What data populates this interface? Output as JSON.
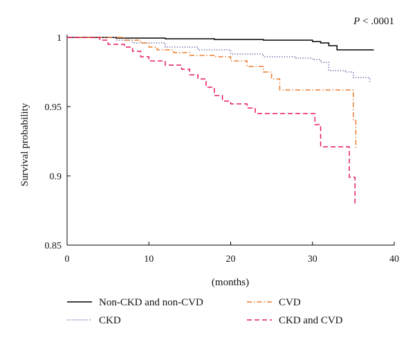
{
  "chart_data": {
    "type": "line",
    "title": "",
    "annotation": {
      "italic": "P",
      "rest": " < .0001"
    },
    "xlabel": "(months)",
    "ylabel": "Survival probability",
    "xlim": [
      0,
      40
    ],
    "ylim": [
      0.85,
      1.0
    ],
    "xticks": [
      0,
      10,
      20,
      30,
      40
    ],
    "yticks": [
      0.85,
      0.9,
      0.95,
      1.0
    ],
    "xtick_labels": [
      "0",
      "10",
      "20",
      "30",
      "40"
    ],
    "ytick_labels": [
      "0.85",
      "0.9",
      "0.95",
      "1"
    ],
    "grid": false,
    "legend_position": "bottom",
    "series": [
      {
        "name": "Non-CKD and non-CVD",
        "color": "#000000",
        "dash": "solid",
        "points": [
          [
            0,
            1.0
          ],
          [
            6,
            0.9995
          ],
          [
            12,
            0.999
          ],
          [
            18,
            0.9985
          ],
          [
            24,
            0.998
          ],
          [
            30,
            0.997
          ],
          [
            31,
            0.996
          ],
          [
            32,
            0.994
          ],
          [
            33,
            0.991
          ],
          [
            37.5,
            0.991
          ]
        ]
      },
      {
        "name": "CKD",
        "color": "#5a5aa8",
        "dash": "dotted",
        "points": [
          [
            0,
            1.0
          ],
          [
            4,
            1.0
          ],
          [
            6,
            0.998
          ],
          [
            8,
            0.996
          ],
          [
            12,
            0.993
          ],
          [
            16,
            0.991
          ],
          [
            20,
            0.988
          ],
          [
            24,
            0.986
          ],
          [
            28,
            0.985
          ],
          [
            30,
            0.984
          ],
          [
            31,
            0.982
          ],
          [
            32,
            0.976
          ],
          [
            34,
            0.975
          ],
          [
            35,
            0.971
          ],
          [
            37,
            0.968
          ]
        ]
      },
      {
        "name": "CVD",
        "color": "#ec7a2c",
        "dash": "dashdot",
        "points": [
          [
            0,
            1.0
          ],
          [
            5,
            1.0
          ],
          [
            7,
            0.998
          ],
          [
            9,
            0.996
          ],
          [
            10,
            0.993
          ],
          [
            11,
            0.991
          ],
          [
            13,
            0.989
          ],
          [
            15,
            0.987
          ],
          [
            18,
            0.986
          ],
          [
            20,
            0.983
          ],
          [
            22,
            0.979
          ],
          [
            24,
            0.975
          ],
          [
            25,
            0.97
          ],
          [
            26,
            0.962
          ],
          [
            34.5,
            0.962
          ],
          [
            35,
            0.94
          ],
          [
            35.3,
            0.92
          ]
        ]
      },
      {
        "name": "CKD and CVD",
        "color": "#e8185c",
        "dash": "dashed",
        "points": [
          [
            0,
            1.0
          ],
          [
            4,
            0.998
          ],
          [
            5,
            0.995
          ],
          [
            7,
            0.993
          ],
          [
            8,
            0.99
          ],
          [
            9,
            0.986
          ],
          [
            10,
            0.983
          ],
          [
            12,
            0.98
          ],
          [
            14,
            0.977
          ],
          [
            15,
            0.973
          ],
          [
            16,
            0.97
          ],
          [
            17,
            0.964
          ],
          [
            18,
            0.958
          ],
          [
            19,
            0.954
          ],
          [
            20,
            0.952
          ],
          [
            22,
            0.949
          ],
          [
            23,
            0.945
          ],
          [
            30,
            0.945
          ],
          [
            30.3,
            0.937
          ],
          [
            31,
            0.921
          ],
          [
            34,
            0.921
          ],
          [
            34.5,
            0.899
          ],
          [
            35,
            0.899
          ],
          [
            35.2,
            0.88
          ]
        ]
      }
    ]
  }
}
